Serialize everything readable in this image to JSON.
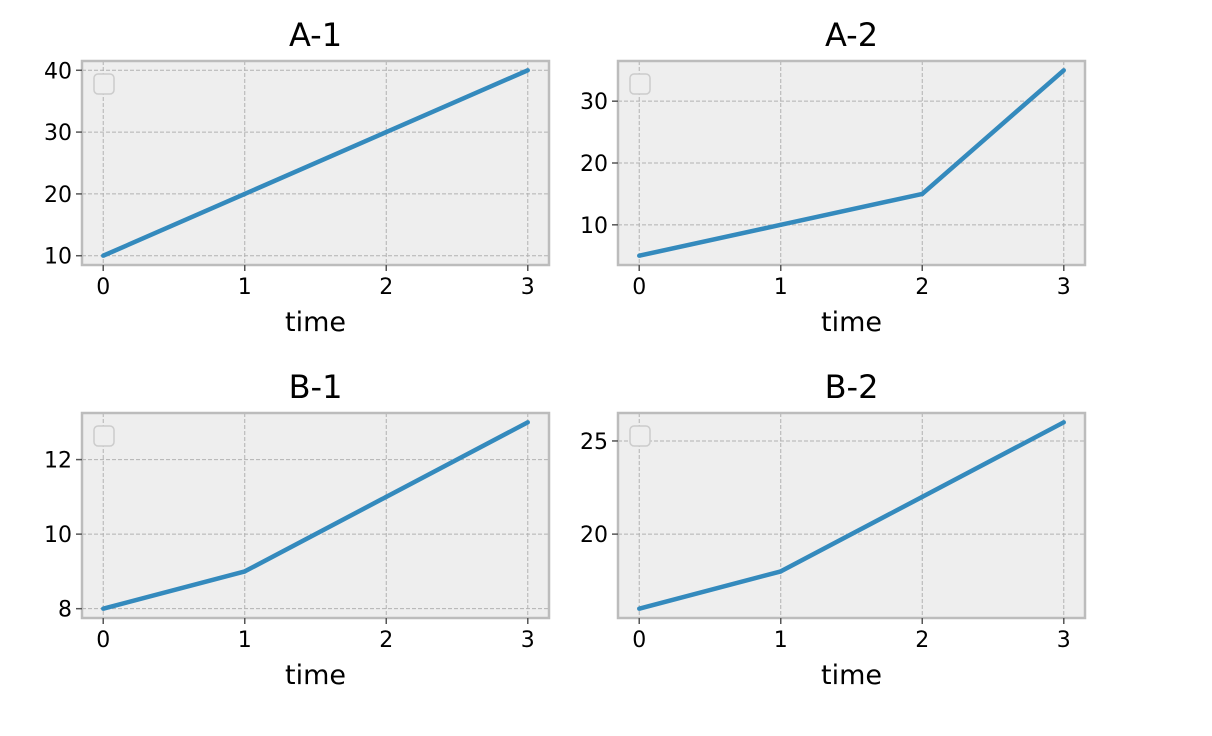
{
  "chart_data": [
    {
      "type": "line",
      "title": "A-1",
      "xlabel": "time",
      "ylabel": "",
      "x": [
        0,
        1,
        2,
        3
      ],
      "series": [
        {
          "values": [
            10,
            20,
            30,
            40
          ],
          "color": "#348abd"
        }
      ],
      "xticks": [
        0,
        1,
        2,
        3
      ],
      "yticks": [
        10,
        20,
        30,
        40
      ],
      "xlim": [
        -0.15,
        3.15
      ],
      "ylim": [
        8.5,
        41.5
      ],
      "grid": true,
      "legend": "top-left"
    },
    {
      "type": "line",
      "title": "A-2",
      "xlabel": "time",
      "ylabel": "",
      "x": [
        0,
        1,
        2,
        3
      ],
      "series": [
        {
          "values": [
            5,
            10,
            15,
            35
          ],
          "color": "#348abd"
        }
      ],
      "xticks": [
        0,
        1,
        2,
        3
      ],
      "yticks": [
        10,
        20,
        30
      ],
      "xlim": [
        -0.15,
        3.15
      ],
      "ylim": [
        3.5,
        36.5
      ],
      "grid": true,
      "legend": "top-left"
    },
    {
      "type": "line",
      "title": "B-1",
      "xlabel": "time",
      "ylabel": "",
      "x": [
        0,
        1,
        2,
        3
      ],
      "series": [
        {
          "values": [
            8,
            9,
            11,
            13
          ],
          "color": "#348abd"
        }
      ],
      "xticks": [
        0,
        1,
        2,
        3
      ],
      "yticks": [
        8,
        10,
        12
      ],
      "xlim": [
        -0.15,
        3.15
      ],
      "ylim": [
        7.75,
        13.25
      ],
      "grid": true,
      "legend": "top-left"
    },
    {
      "type": "line",
      "title": "B-2",
      "xlabel": "time",
      "ylabel": "",
      "x": [
        0,
        1,
        2,
        3
      ],
      "series": [
        {
          "values": [
            16,
            18,
            22,
            26
          ],
          "color": "#348abd"
        }
      ],
      "xticks": [
        0,
        1,
        2,
        3
      ],
      "yticks": [
        20,
        25
      ],
      "xlim": [
        -0.15,
        3.15
      ],
      "ylim": [
        15.5,
        26.5
      ],
      "grid": true,
      "legend": "top-left"
    }
  ]
}
